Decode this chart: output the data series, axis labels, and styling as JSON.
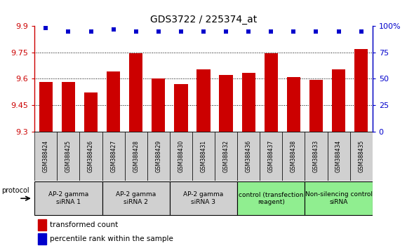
{
  "title": "GDS3722 / 225374_at",
  "samples": [
    "GSM388424",
    "GSM388425",
    "GSM388426",
    "GSM388427",
    "GSM388428",
    "GSM388429",
    "GSM388430",
    "GSM388431",
    "GSM388432",
    "GSM388436",
    "GSM388437",
    "GSM388438",
    "GSM388433",
    "GSM388434",
    "GSM388435"
  ],
  "bar_values": [
    9.58,
    9.58,
    9.52,
    9.64,
    9.745,
    9.6,
    9.57,
    9.655,
    9.62,
    9.635,
    9.745,
    9.61,
    9.595,
    9.655,
    9.77
  ],
  "dot_values": [
    98,
    95,
    95,
    97,
    95,
    95,
    95,
    95,
    95,
    95,
    95,
    95,
    95,
    95,
    95
  ],
  "bar_color": "#cc0000",
  "dot_color": "#0000cc",
  "ylim_left": [
    9.3,
    9.9
  ],
  "ylim_right": [
    0,
    100
  ],
  "yticks_left": [
    9.3,
    9.45,
    9.6,
    9.75,
    9.9
  ],
  "ytick_labels_left": [
    "9.3",
    "9.45",
    "9.6",
    "9.75",
    "9.9"
  ],
  "yticks_right": [
    0,
    25,
    50,
    75,
    100
  ],
  "ytick_labels_right": [
    "0",
    "25",
    "50",
    "75",
    "100%"
  ],
  "gridlines": [
    9.45,
    9.6,
    9.75
  ],
  "groups": [
    {
      "label": "AP-2 gamma\nsiRNA 1",
      "start": 0,
      "end": 2,
      "color": "#d0d0d0"
    },
    {
      "label": "AP-2 gamma\nsiRNA 2",
      "start": 3,
      "end": 5,
      "color": "#d0d0d0"
    },
    {
      "label": "AP-2 gamma\nsiRNA 3",
      "start": 6,
      "end": 8,
      "color": "#d0d0d0"
    },
    {
      "label": "control (transfection\nreagent)",
      "start": 9,
      "end": 11,
      "color": "#90ee90"
    },
    {
      "label": "Non-silencing control\nsiRNA",
      "start": 12,
      "end": 14,
      "color": "#90ee90"
    }
  ],
  "protocol_label": "protocol",
  "legend_bar_label": "transformed count",
  "legend_dot_label": "percentile rank within the sample",
  "bg_color": "#ffffff",
  "tick_color_left": "#cc0000",
  "tick_color_right": "#0000cc",
  "sample_box_color": "#d0d0d0"
}
